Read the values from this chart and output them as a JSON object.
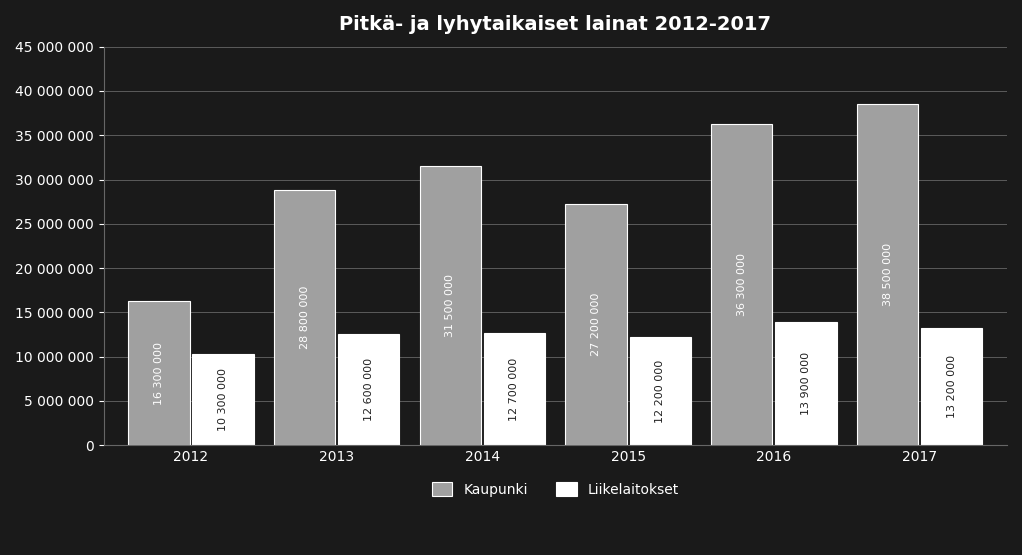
{
  "years": [
    "2012",
    "2013",
    "2014",
    "2015",
    "2016",
    "2017"
  ],
  "kaupunki": [
    16300000,
    28800000,
    31500000,
    27200000,
    36300000,
    38500000
  ],
  "liikelaitokset": [
    10300000,
    12600000,
    12700000,
    12200000,
    13900000,
    13200000
  ],
  "bar_color_kaupunki": "#a0a0a0",
  "bar_color_liikelaitokset": "#ffffff",
  "title": "Pitkä- ja lyhytaikaiset lainat 2012-2017",
  "legend_kaupunki": "Kaupunki",
  "legend_liikelaitokset": "Liikelaitokset",
  "ylim": [
    0,
    45000000
  ],
  "yticks": [
    0,
    5000000,
    10000000,
    15000000,
    20000000,
    25000000,
    30000000,
    35000000,
    40000000,
    45000000
  ],
  "background_color": "#1a1a1a",
  "text_color": "#ffffff",
  "bar_edge_color": "#ffffff",
  "title_fontsize": 14,
  "label_fontsize": 8,
  "axis_fontsize": 10,
  "legend_fontsize": 10,
  "bar_width": 0.42,
  "bar_gap": 0.02
}
